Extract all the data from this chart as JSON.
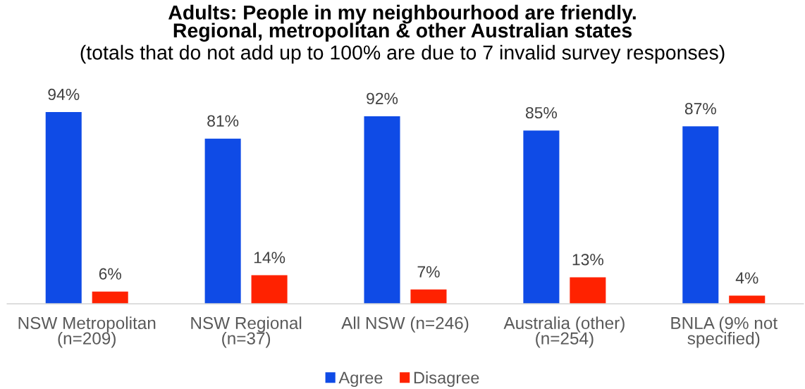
{
  "chart_data": {
    "type": "bar",
    "title": "Adults: People in my neighbourhood are friendly.\nRegional, metropolitan & other Australian states",
    "subtitle": "(totals that do not add up to 100% are due to 7 invalid survey responses)",
    "categories": [
      "NSW Metropolitan\n(n=209)",
      "NSW Regional\n(n=37)",
      "All NSW (n=246)",
      "Australia (other)\n(n=254)",
      "BNLA (9% not\nspecified)"
    ],
    "series": [
      {
        "name": "Agree",
        "color": "#0f4be6",
        "values": [
          94,
          81,
          92,
          85,
          87
        ],
        "value_labels": [
          "94%",
          "81%",
          "92%",
          "85%",
          "87%"
        ]
      },
      {
        "name": "Disagree",
        "color": "#ff2200",
        "values": [
          6,
          14,
          7,
          13,
          4
        ],
        "value_labels": [
          "6%",
          "14%",
          "7%",
          "13%",
          "4%"
        ]
      }
    ],
    "tick_labels": "x",
    "legend": "bottom"
  }
}
